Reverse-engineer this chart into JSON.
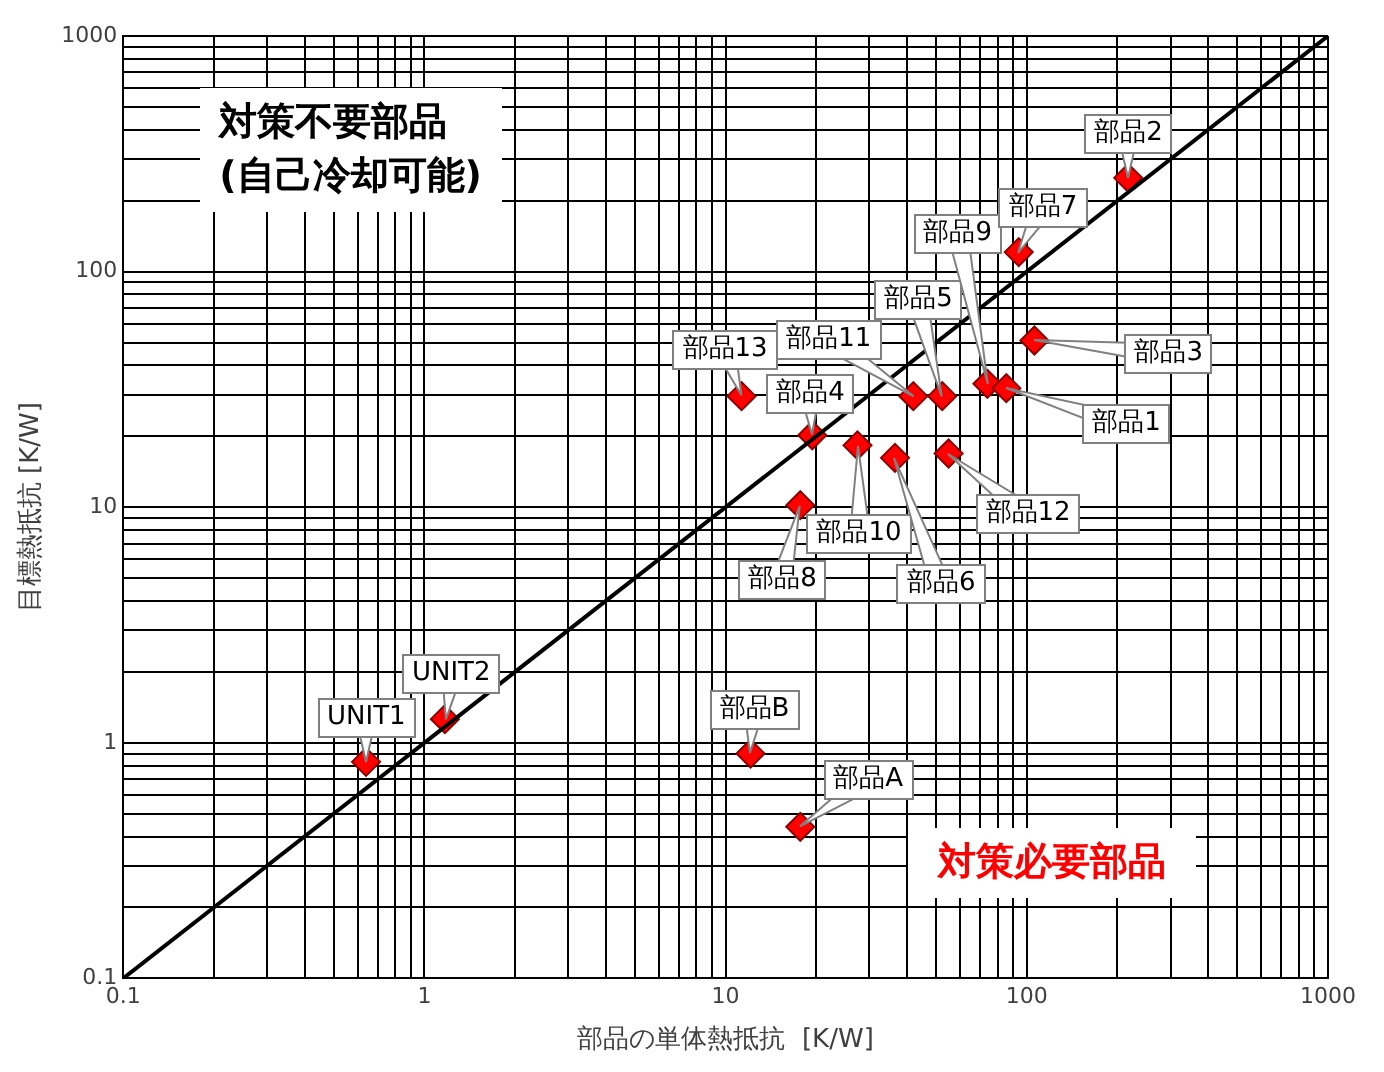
{
  "chart_data": {
    "type": "scatter",
    "xlabel": "部品の単体熱抵抗  [K/W]",
    "ylabel": "目標熱抵抗 [K/W]",
    "log": "xy",
    "grid": true,
    "legend": false,
    "xlim": [
      0.1,
      1000
    ],
    "ylim": [
      0.1,
      1000
    ],
    "xticks": [
      0.1,
      1,
      10,
      100,
      1000
    ],
    "yticks": [
      0.1,
      1,
      10,
      100,
      1000
    ],
    "series": [
      {
        "type": "line",
        "color": "#000000",
        "marker": "none",
        "line_style": "solid",
        "x": [
          0.1,
          1000
        ],
        "values": [
          0.1,
          1000
        ]
      },
      {
        "color": "#ff0000",
        "marker": "diamond",
        "x": [
          0.64,
          1.17,
          12.1,
          17.7,
          17.7,
          11.3,
          19.4,
          27.4,
          36.5,
          42,
          52.4,
          55,
          74,
          85.5,
          106,
          94,
          217
        ],
        "values": [
          0.83,
          1.26,
          0.9,
          0.44,
          10.2,
          29.6,
          20.2,
          18.3,
          16.2,
          29.6,
          29.6,
          16.9,
          33.4,
          32,
          51,
          121,
          250
        ]
      }
    ],
    "annotations": [
      "対策不要部品\n(自己冷却可能)",
      "対策必要部品",
      {
        "text": "UNIT1",
        "x": 0.64,
        "y": 0.83
      },
      {
        "text": "UNIT2",
        "x": 1.17,
        "y": 1.26
      },
      {
        "text": "部品B",
        "x": 12.1,
        "y": 0.9
      },
      {
        "text": "部品A",
        "x": 17.7,
        "y": 0.44
      },
      {
        "text": "部品8",
        "x": 17.7,
        "y": 10.2
      },
      {
        "text": "部品13",
        "x": 11.3,
        "y": 29.6
      },
      {
        "text": "部品4",
        "x": 19.4,
        "y": 20.2
      },
      {
        "text": "部品10",
        "x": 27.4,
        "y": 18.3
      },
      {
        "text": "部品6",
        "x": 36.5,
        "y": 16.2
      },
      {
        "text": "部品11",
        "x": 42,
        "y": 29.6
      },
      {
        "text": "部品5",
        "x": 52.4,
        "y": 29.6
      },
      {
        "text": "部品12",
        "x": 55,
        "y": 16.9
      },
      {
        "text": "部品9",
        "x": 74,
        "y": 33.4
      },
      {
        "text": "部品1",
        "x": 85.5,
        "y": 32
      },
      {
        "text": "部品3",
        "x": 106,
        "y": 51
      },
      {
        "text": "部品7",
        "x": 94,
        "y": 121
      },
      {
        "text": "部品2",
        "x": 217,
        "y": 250
      }
    ]
  }
}
